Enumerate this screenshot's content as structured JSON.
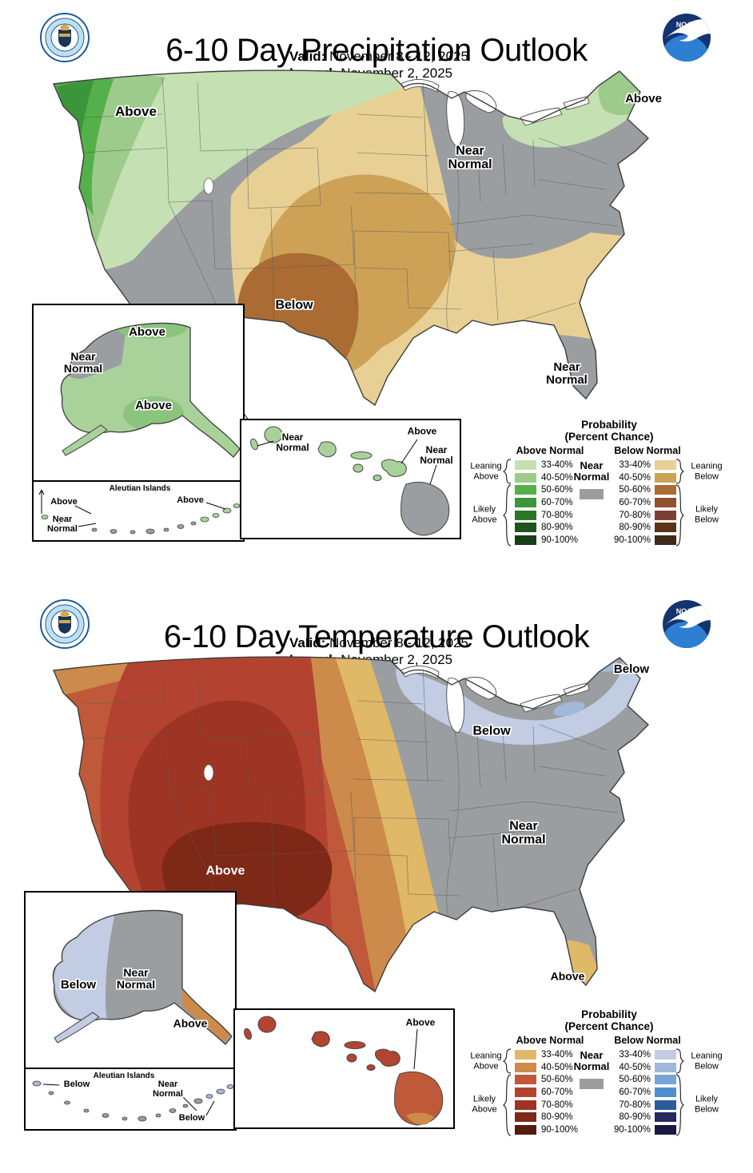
{
  "logos": {
    "noaa_text": "NOAA"
  },
  "map_style": {
    "outline": "#3d3d3d",
    "state_line": "#5a5a5a",
    "water": "#ffffff"
  },
  "panels": [
    {
      "title": "6-10 Day Precipitation Outlook",
      "valid_label": "Valid:",
      "valid_value": "November 8 - 12, 2025",
      "issued_label": "Issued:",
      "issued_value": "November 2, 2025",
      "conus_labels": {
        "northwest": "Above",
        "central": "Near\nNormal",
        "south": "Below",
        "florida": "Near\nNormal",
        "northeast": "Above"
      },
      "alaska_labels": {
        "near_normal": "Near\nNormal",
        "above_north": "Above",
        "above_south": "Above"
      },
      "aleutians": {
        "caption": "Aleutian Islands",
        "left_top": "Above",
        "left_bottom": "Near\nNormal",
        "right": "Above"
      },
      "hawaii_labels": {
        "west": "Near\nNormal",
        "maui": "Above",
        "big_island": "Near\nNormal"
      },
      "inset_colors": {
        "alaska_base": "#a9d29a",
        "alaska_blob": "#8bc47d",
        "hawaii_island": "#a9d29a",
        "dot_alt": "#9b9ea0"
      },
      "legend": {
        "title_line1": "Probability",
        "title_line2": "(Percent Chance)",
        "above_header": "Above Normal",
        "below_header": "Below Normal",
        "near_label": "Near\nNormal",
        "leaning_above": "Leaning\nAbove",
        "likely_above": "Likely\nAbove",
        "leaning_below": "Leaning\nBelow",
        "likely_below": "Likely\nBelow",
        "ranges": [
          "33-40%",
          "40-50%",
          "50-60%",
          "60-70%",
          "70-80%",
          "80-90%",
          "90-100%"
        ],
        "above_colors": [
          "#c5e1b3",
          "#9ccb8b",
          "#54b04a",
          "#3b9639",
          "#2c7628",
          "#1e531e",
          "#163f17"
        ],
        "below_colors": [
          "#e8d095",
          "#cda257",
          "#aa6c33",
          "#8f502f",
          "#7c4038",
          "#5c3413",
          "#3d2a1b"
        ],
        "near_color": "#9b9ea0"
      }
    },
    {
      "title": "6-10 Day Temperature Outlook",
      "valid_label": "Valid:",
      "valid_value": "November 8 - 12, 2025",
      "issued_label": "Issued:",
      "issued_value": "November 2, 2025",
      "conus_labels": {
        "west": "Above",
        "michigan": "Below",
        "northeast": "Below",
        "east": "Near\nNormal",
        "florida": "Above"
      },
      "alaska_labels": {
        "below": "Below",
        "near_normal": "Near\nNormal",
        "above": "Above"
      },
      "aleutians": {
        "caption": "Aleutian Islands",
        "left": "Below",
        "middle": "Near\nNormal",
        "right": "Below"
      },
      "hawaii_labels": {
        "big_island": "Above"
      },
      "inset_colors": {
        "alaska_below": "#c2cce3",
        "alaska_above": "#cc8b4a",
        "hawaii_island": "#b34431",
        "hawaii_big": "#c05939",
        "hawaii_tip": "#cc8b4a",
        "dot_blue": "#a9b6d6"
      },
      "legend": {
        "title_line1": "Probability",
        "title_line2": "(Percent Chance)",
        "above_header": "Above Normal",
        "below_header": "Below Normal",
        "near_label": "Near\nNormal",
        "leaning_above": "Leaning\nAbove",
        "likely_above": "Likely\nAbove",
        "leaning_below": "Leaning\nBelow",
        "likely_below": "Likely\nBelow",
        "ranges": [
          "33-40%",
          "40-50%",
          "50-60%",
          "60-70%",
          "70-80%",
          "80-90%",
          "90-100%"
        ],
        "above_colors": [
          "#dfb868",
          "#cc8b4a",
          "#c05939",
          "#b34330",
          "#9e3423",
          "#7e2817",
          "#561a0e"
        ],
        "below_colors": [
          "#c2cce3",
          "#a0b8d9",
          "#76a4d6",
          "#4d8fce",
          "#2a5c9c",
          "#2a2861",
          "#1b1843"
        ],
        "near_color": "#9b9ea0"
      }
    }
  ]
}
